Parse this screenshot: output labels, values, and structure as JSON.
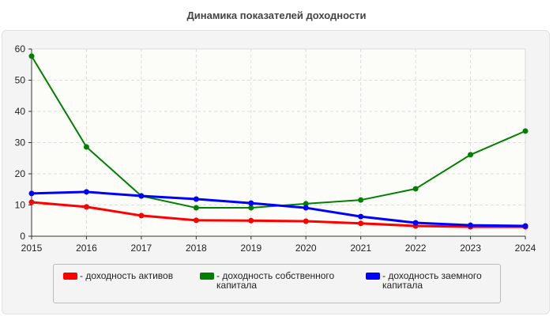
{
  "chart_data": {
    "type": "line",
    "title": "Динамика показателей доходности",
    "x": [
      2015,
      2016,
      2017,
      2018,
      2019,
      2020,
      2021,
      2022,
      2023,
      2024
    ],
    "xticks": [
      "2015",
      "2016",
      "2017",
      "2018",
      "2019",
      "2020",
      "2021",
      "2022",
      "2023",
      "2024"
    ],
    "yticks": [
      "0",
      "10",
      "20",
      "30",
      "40",
      "50",
      "60"
    ],
    "ylim": [
      0,
      60
    ],
    "grid": true,
    "legend_placement": "bottom",
    "series": [
      {
        "name": "- доходность активов",
        "color": "#ff0000",
        "values": [
          10.9,
          9.4,
          6.6,
          5.1,
          5.0,
          4.8,
          4.1,
          3.3,
          3.0,
          3.0
        ]
      },
      {
        "name": "- доходность собственного капитала",
        "color": "#008000",
        "values": [
          57.7,
          28.6,
          12.9,
          9.1,
          9.1,
          10.4,
          11.6,
          15.2,
          26.1,
          33.7
        ]
      },
      {
        "name": "- доходность заемного капитала",
        "color": "#0000ff",
        "values": [
          13.7,
          14.2,
          12.9,
          11.9,
          10.6,
          9.1,
          6.3,
          4.3,
          3.5,
          3.3
        ]
      }
    ]
  }
}
